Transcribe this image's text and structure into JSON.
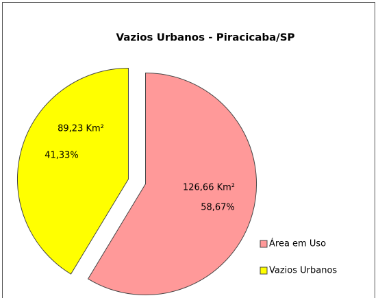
{
  "chart_data": {
    "type": "pie",
    "title": "Vazios Urbanos - Piracicaba/SP",
    "categories": [
      "Área em Uso",
      "Vazios Urbanos"
    ],
    "values": [
      126.66,
      89.23
    ],
    "value_labels": [
      "126,66 Km²",
      "89,23 Km²"
    ],
    "percents": [
      58.67,
      41.33
    ],
    "percent_labels": [
      "58,67%",
      "41,33%"
    ],
    "colors": [
      "#ff9999",
      "#ffff00"
    ],
    "legend": "right"
  }
}
